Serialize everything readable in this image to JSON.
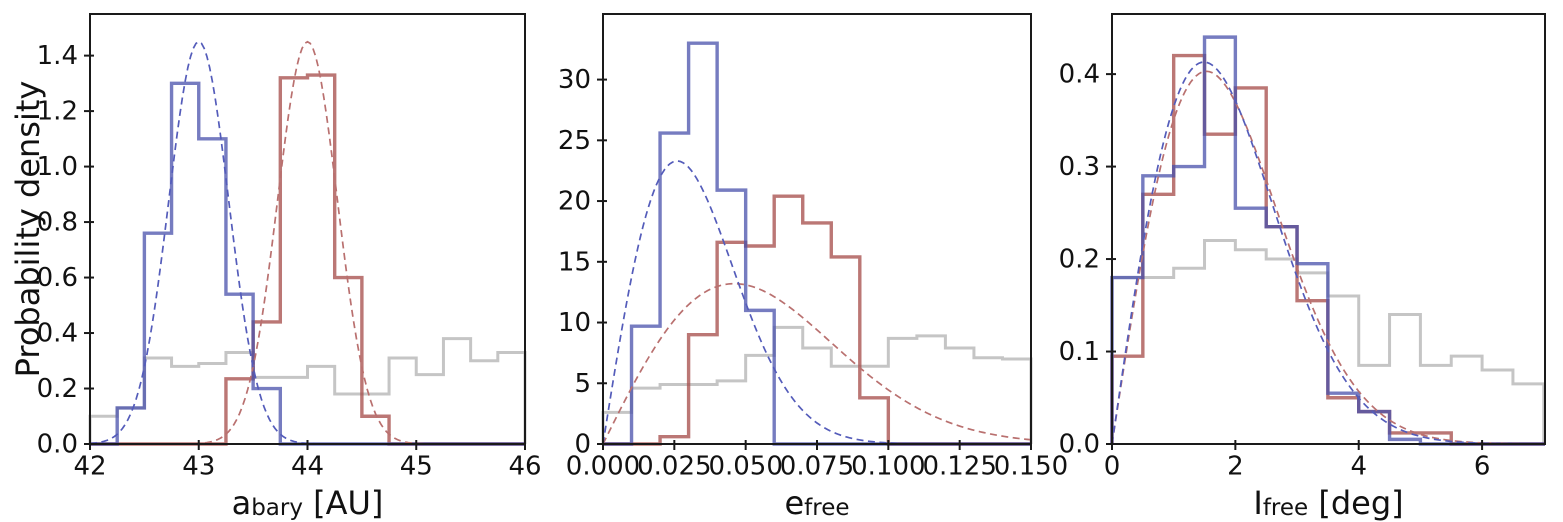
{
  "figure": {
    "background": "#ffffff",
    "ylabel": "Probability density",
    "colors": {
      "blue_hist": "#4850ab",
      "red_hist": "#a44a47",
      "gray_hist": "#c5c5c5",
      "blue_dashed": "#545cba",
      "red_dashed": "#b9706f",
      "axis": "#1a1a1a"
    }
  },
  "chart_data": [
    {
      "id": "abary",
      "type": "bar",
      "xlabel": {
        "pre": "a",
        "sub": "bary",
        "post": " [AU]"
      },
      "ylabel": "Probability density",
      "xlim": [
        42,
        46
      ],
      "ylim": [
        0,
        1.55
      ],
      "xticks": {
        "values": [
          42,
          43,
          44,
          45,
          46
        ],
        "labels": [
          "42",
          "43",
          "44",
          "45",
          "46"
        ]
      },
      "yticks": {
        "values": [
          0.0,
          0.2,
          0.4,
          0.6,
          0.8,
          1.0,
          1.2,
          1.4
        ],
        "labels": [
          "0.0",
          "0.2",
          "0.4",
          "0.6",
          "0.8",
          "1.0",
          "1.2",
          "1.4"
        ]
      },
      "series": [
        {
          "name": "gray-prior-histogram",
          "color": "gray_hist",
          "opacity": 1,
          "lineWidth": 3,
          "binStart": 42.0,
          "binWidth": 0.25,
          "values": [
            0.1,
            0.13,
            0.31,
            0.28,
            0.29,
            0.33,
            0.24,
            0.24,
            0.28,
            0.18,
            0.18,
            0.31,
            0.25,
            0.38,
            0.3,
            0.33
          ]
        },
        {
          "name": "red-posterior-histogram",
          "color": "red_hist",
          "opacity": 0.75,
          "lineWidth": 3.4,
          "binStart": 43.25,
          "binWidth": 0.25,
          "values": [
            0.235,
            0.44,
            1.32,
            1.33,
            0.6,
            0.1
          ]
        },
        {
          "name": "blue-posterior-histogram",
          "color": "blue_hist",
          "opacity": 0.75,
          "lineWidth": 3.4,
          "binStart": 42.25,
          "binWidth": 0.25,
          "values": [
            0.13,
            0.76,
            1.3,
            1.1,
            0.54,
            0.2
          ]
        }
      ],
      "curves": [
        {
          "name": "red-gaussian-fit",
          "kind": "gaussian",
          "mu": 44.0,
          "sigma": 0.275,
          "amplitude": 1.45,
          "color": "red_dashed"
        },
        {
          "name": "blue-gaussian-fit",
          "kind": "gaussian",
          "mu": 43.0,
          "sigma": 0.275,
          "amplitude": 1.45,
          "color": "blue_dashed"
        }
      ]
    },
    {
      "id": "efree",
      "type": "bar",
      "xlabel": {
        "pre": "e",
        "sub": "free",
        "post": ""
      },
      "ylabel": "",
      "xlim": [
        0,
        0.15
      ],
      "ylim": [
        0,
        35.4
      ],
      "xticks": {
        "values": [
          0.0,
          0.025,
          0.05,
          0.075,
          0.1,
          0.125,
          0.15
        ],
        "labels": [
          "0.000",
          "0.025",
          "0.050",
          "0.075",
          "0.100",
          "0.125",
          "0.150"
        ]
      },
      "yticks": {
        "values": [
          0,
          5,
          10,
          15,
          20,
          25,
          30
        ],
        "labels": [
          "0",
          "5",
          "10",
          "15",
          "20",
          "25",
          "30"
        ]
      },
      "series": [
        {
          "name": "gray-prior-histogram",
          "color": "gray_hist",
          "opacity": 1,
          "lineWidth": 3,
          "binStart": 0.0,
          "binWidth": 0.01,
          "values": [
            2.6,
            4.6,
            4.9,
            4.9,
            5.2,
            7.3,
            9.6,
            7.9,
            6.4,
            6.4,
            8.7,
            8.9,
            7.9,
            7.1,
            7.0
          ]
        },
        {
          "name": "red-posterior-histogram",
          "color": "red_hist",
          "opacity": 0.75,
          "lineWidth": 3.4,
          "binStart": 0.02,
          "binWidth": 0.01,
          "values": [
            0.6,
            9.0,
            16.6,
            16.3,
            20.4,
            18.2,
            15.4,
            3.8
          ]
        },
        {
          "name": "blue-posterior-histogram",
          "color": "blue_hist",
          "opacity": 0.75,
          "lineWidth": 3.4,
          "binStart": 0.01,
          "binWidth": 0.01,
          "values": [
            9.7,
            25.6,
            33.0,
            20.9,
            11.0
          ]
        }
      ],
      "curves": [
        {
          "name": "red-rayleigh-fit",
          "kind": "rayleigh",
          "sigma": 0.046,
          "amplitude": 13.2,
          "color": "red_dashed"
        },
        {
          "name": "blue-rayleigh-fit",
          "kind": "rayleigh",
          "sigma": 0.026,
          "amplitude": 23.3,
          "color": "blue_dashed"
        }
      ]
    },
    {
      "id": "ifree",
      "type": "bar",
      "xlabel": {
        "pre": "I",
        "sub": "free",
        "post": " [deg]"
      },
      "ylabel": "",
      "xlim": [
        0,
        7.02
      ],
      "ylim": [
        0,
        0.465
      ],
      "xticks": {
        "values": [
          0,
          2,
          4,
          6
        ],
        "labels": [
          "0",
          "2",
          "4",
          "6"
        ]
      },
      "yticks": {
        "values": [
          0.0,
          0.1,
          0.2,
          0.3,
          0.4
        ],
        "labels": [
          "0.0",
          "0.1",
          "0.2",
          "0.3",
          "0.4"
        ]
      },
      "series": [
        {
          "name": "gray-prior-histogram",
          "color": "gray_hist",
          "opacity": 1,
          "lineWidth": 3,
          "binStart": 0.0,
          "binWidth": 0.5,
          "values": [
            0.18,
            0.18,
            0.19,
            0.22,
            0.21,
            0.2,
            0.185,
            0.16,
            0.085,
            0.14,
            0.085,
            0.095,
            0.08,
            0.065
          ]
        },
        {
          "name": "red-posterior-histogram",
          "color": "red_hist",
          "opacity": 0.75,
          "lineWidth": 3.4,
          "binStart": 0.0,
          "binWidth": 0.5,
          "values": [
            0.095,
            0.27,
            0.42,
            0.335,
            0.385,
            0.235,
            0.155,
            0.05,
            0.035,
            0.012,
            0.012
          ]
        },
        {
          "name": "blue-posterior-histogram",
          "color": "blue_hist",
          "opacity": 0.75,
          "lineWidth": 3.4,
          "binStart": 0.0,
          "binWidth": 0.5,
          "values": [
            0.18,
            0.29,
            0.3,
            0.44,
            0.255,
            0.235,
            0.195,
            0.055,
            0.035,
            0.005
          ]
        }
      ],
      "curves": [
        {
          "name": "red-rayleigh-fit",
          "kind": "rayleigh",
          "sigma": 1.53,
          "amplitude": 0.403,
          "color": "red_dashed"
        },
        {
          "name": "blue-rayleigh-fit",
          "kind": "rayleigh",
          "sigma": 1.49,
          "amplitude": 0.413,
          "color": "blue_dashed"
        }
      ]
    }
  ]
}
